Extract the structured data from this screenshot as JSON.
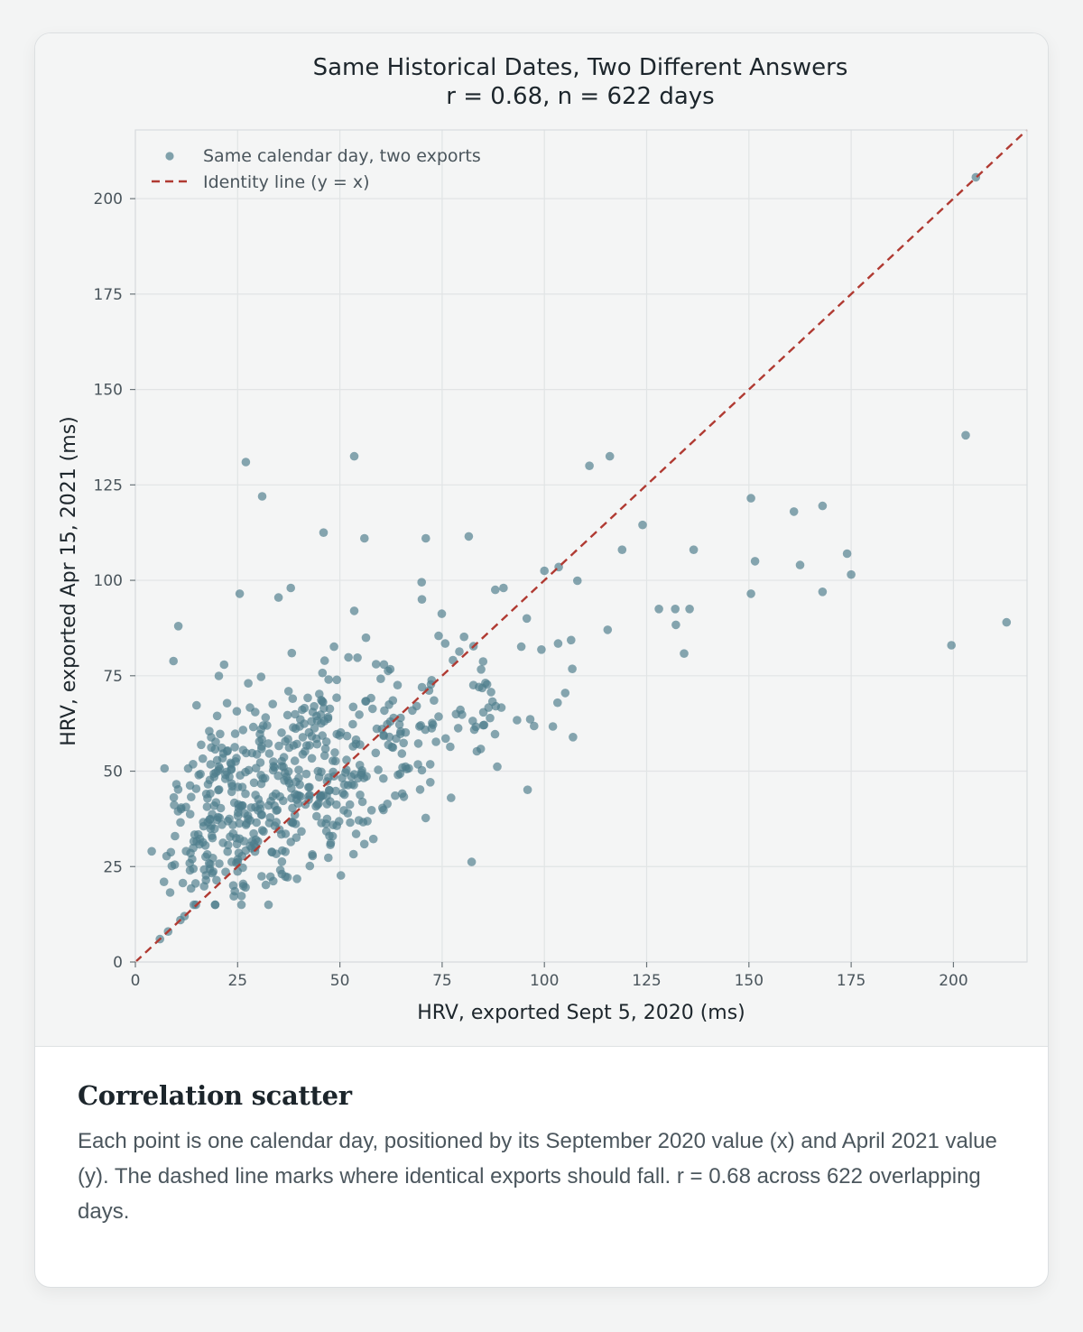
{
  "chart_data": {
    "type": "scatter",
    "title": "Same Historical Dates, Two Different Answers",
    "subtitle": "r = 0.68, n = 622 days",
    "xlabel": "HRV, exported Sept 5, 2020 (ms)",
    "ylabel": "HRV, exported Apr 15, 2021 (ms)",
    "xlim": [
      0,
      218
    ],
    "ylim": [
      0,
      218
    ],
    "xticks": [
      0,
      25,
      50,
      75,
      100,
      125,
      150,
      175,
      200
    ],
    "yticks": [
      0,
      25,
      50,
      75,
      100,
      125,
      150,
      175,
      200
    ],
    "grid": true,
    "legend_position": "top-left",
    "legend": {
      "points_label": "Same calendar day, two exports",
      "line_label": "Identity line (y = x)"
    },
    "identity_line": {
      "from": [
        0,
        0
      ],
      "to": [
        218,
        218
      ]
    },
    "colors": {
      "points": "#4e7d8c",
      "identity": "#b03a32"
    },
    "series": [
      {
        "outliers": [
          [
            205.5,
            205.6
          ],
          [
            203,
            138
          ],
          [
            213,
            89
          ],
          [
            199.5,
            83
          ],
          [
            150.5,
            121.5
          ],
          [
            161,
            118
          ],
          [
            168,
            119.5
          ],
          [
            174,
            107
          ],
          [
            175,
            101.5
          ],
          [
            151.5,
            105
          ],
          [
            162.5,
            104
          ],
          [
            150.5,
            96.5
          ],
          [
            168,
            97
          ],
          [
            136.5,
            108
          ],
          [
            124,
            114.5
          ],
          [
            111,
            130
          ],
          [
            116,
            132.5
          ],
          [
            53.5,
            132.5
          ],
          [
            27,
            131
          ],
          [
            31,
            122
          ],
          [
            46,
            112.5
          ],
          [
            56,
            111
          ],
          [
            71,
            111
          ],
          [
            81.5,
            111.5
          ],
          [
            70,
            99.5
          ],
          [
            25.5,
            96.5
          ],
          [
            10.5,
            88
          ],
          [
            38,
            98
          ],
          [
            35,
            95.5
          ],
          [
            53.5,
            92
          ],
          [
            132,
            92.5
          ],
          [
            135.5,
            92.5
          ],
          [
            128,
            92.5
          ],
          [
            4,
            29
          ],
          [
            7,
            21
          ],
          [
            6,
            6
          ],
          [
            8,
            8
          ],
          [
            11,
            11
          ],
          [
            12,
            12
          ],
          [
            119,
            108
          ],
          [
            103.5,
            103.5
          ],
          [
            100,
            102.5
          ],
          [
            90,
            98
          ],
          [
            88,
            97.5
          ]
        ],
        "cluster": {
          "x_range": [
            7,
            135
          ],
          "y_range": [
            15,
            100
          ],
          "centers": [
            [
              20,
              42
            ],
            [
              30,
              45
            ],
            [
              40,
              48
            ],
            [
              50,
              52
            ],
            [
              60,
              58
            ],
            [
              70,
              62
            ],
            [
              80,
              66
            ],
            [
              90,
              70
            ],
            [
              100,
              74
            ],
            [
              110,
              78
            ],
            [
              120,
              82
            ]
          ],
          "total_points": 622
        }
      }
    ]
  },
  "caption": {
    "heading": "Correlation scatter",
    "body": "Each point is one calendar day, positioned by its September 2020 value (x) and April 2021 value (y). The dashed line marks where identical exports should fall. r = 0.68 across 622 overlapping days."
  }
}
